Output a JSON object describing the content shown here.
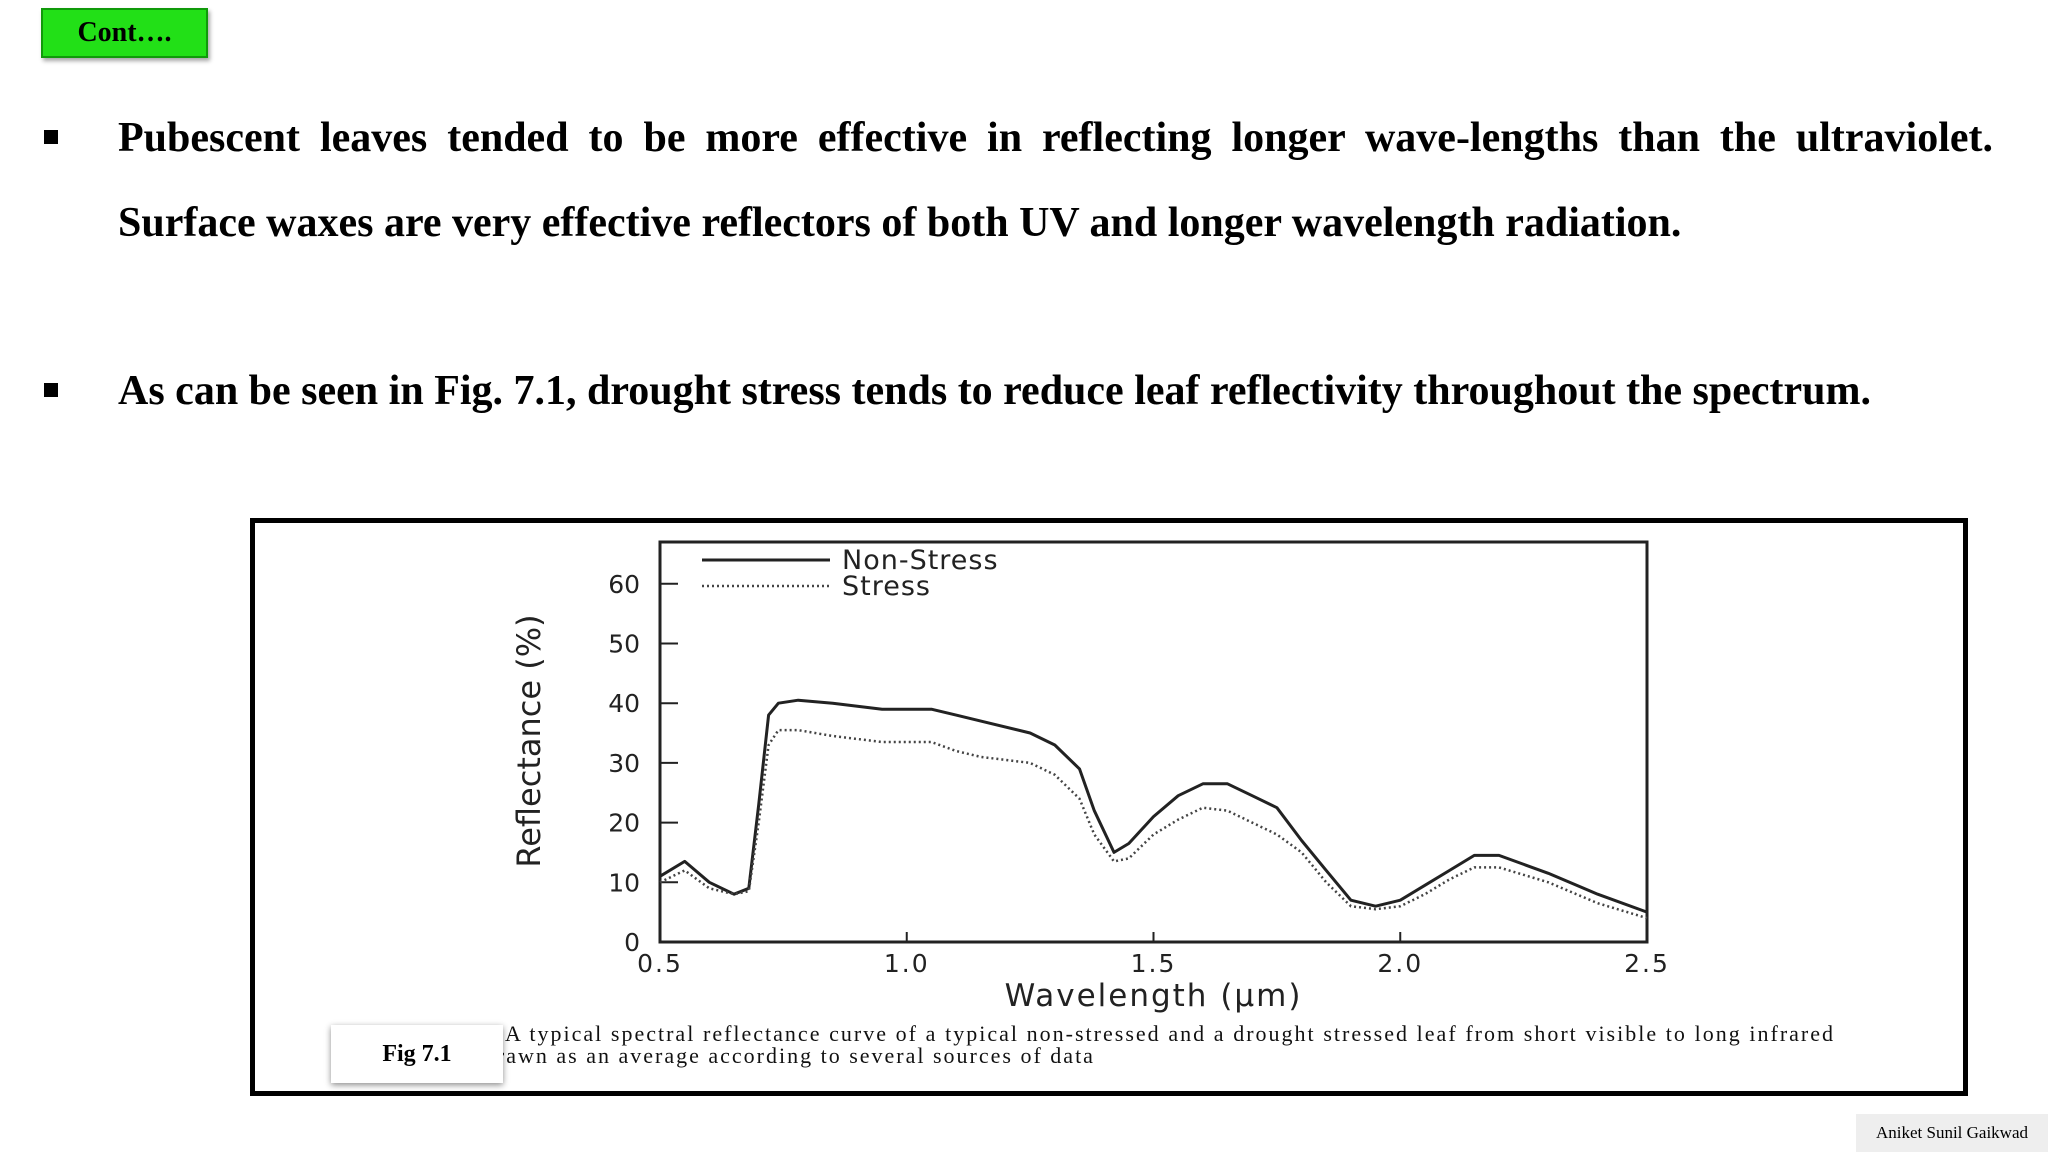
{
  "header": {
    "cont_label": "Cont…."
  },
  "bullets": [
    {
      "text": "Pubescent leaves tended to be more effective in reflecting longer wave-lengths than the ultraviolet. Surface waxes are very effective reflectors of both UV and longer wavelength radiation."
    },
    {
      "text": "As can be seen in Fig. 7.1, drought stress tends to reduce leaf reflectivity throughout the spectrum."
    }
  ],
  "figure": {
    "label": "Fig 7.1",
    "caption": "A typical spectral reflectance curve of a typical non-stressed and a drought stressed leaf from short visible to long infrared wavelength drawn as an average according to several sources of data"
  },
  "chart_data": {
    "type": "line",
    "xlabel": "Wavelength (µm)",
    "ylabel": "Reflectance (%)",
    "xlim": [
      0.5,
      2.5
    ],
    "ylim": [
      0,
      67
    ],
    "xticks": [
      0.5,
      1.0,
      1.5,
      2.0,
      2.5
    ],
    "xtick_labels": [
      "0.5",
      "1.0",
      "1.5",
      "2.0",
      "2.5"
    ],
    "yticks": [
      0,
      10,
      20,
      30,
      40,
      50,
      60
    ],
    "ytick_labels": [
      "0",
      "10",
      "20",
      "30",
      "40",
      "50",
      "60"
    ],
    "grid": false,
    "legend_position": "top-left",
    "series": [
      {
        "name": "Non-Stress",
        "style": "solid",
        "color": "#222222",
        "x": [
          0.5,
          0.55,
          0.6,
          0.65,
          0.68,
          0.7,
          0.72,
          0.74,
          0.78,
          0.85,
          0.95,
          1.05,
          1.1,
          1.15,
          1.25,
          1.3,
          1.35,
          1.38,
          1.42,
          1.45,
          1.5,
          1.55,
          1.6,
          1.65,
          1.7,
          1.75,
          1.8,
          1.85,
          1.9,
          1.95,
          2.0,
          2.05,
          2.1,
          2.15,
          2.2,
          2.3,
          2.4,
          2.5
        ],
        "y": [
          11,
          13.5,
          10,
          8,
          9,
          23,
          38,
          40,
          40.5,
          40,
          39,
          39,
          38,
          37,
          35,
          33,
          29,
          22,
          15,
          16.5,
          21,
          24.5,
          26.5,
          26.5,
          24.5,
          22.5,
          17,
          12,
          7,
          6,
          7,
          9.5,
          12,
          14.5,
          14.5,
          11.5,
          8,
          5
        ]
      },
      {
        "name": "Stress",
        "style": "dotted",
        "color": "#444444",
        "x": [
          0.5,
          0.55,
          0.6,
          0.65,
          0.68,
          0.7,
          0.72,
          0.74,
          0.78,
          0.85,
          0.95,
          1.05,
          1.1,
          1.15,
          1.25,
          1.3,
          1.35,
          1.38,
          1.42,
          1.45,
          1.5,
          1.55,
          1.6,
          1.65,
          1.7,
          1.75,
          1.8,
          1.85,
          1.9,
          1.95,
          2.0,
          2.05,
          2.1,
          2.15,
          2.2,
          2.3,
          2.4,
          2.5
        ],
        "y": [
          10,
          12,
          9,
          8,
          8.5,
          20,
          33,
          35.5,
          35.5,
          34.5,
          33.5,
          33.5,
          32,
          31,
          30,
          28,
          24,
          18,
          13.5,
          14,
          18,
          20.5,
          22.5,
          22,
          20,
          18,
          15,
          10,
          6,
          5.5,
          6,
          8,
          10.5,
          12.5,
          12.5,
          10,
          6.5,
          4
        ]
      }
    ]
  },
  "footer": {
    "author": "Aniket Sunil Gaikwad"
  }
}
